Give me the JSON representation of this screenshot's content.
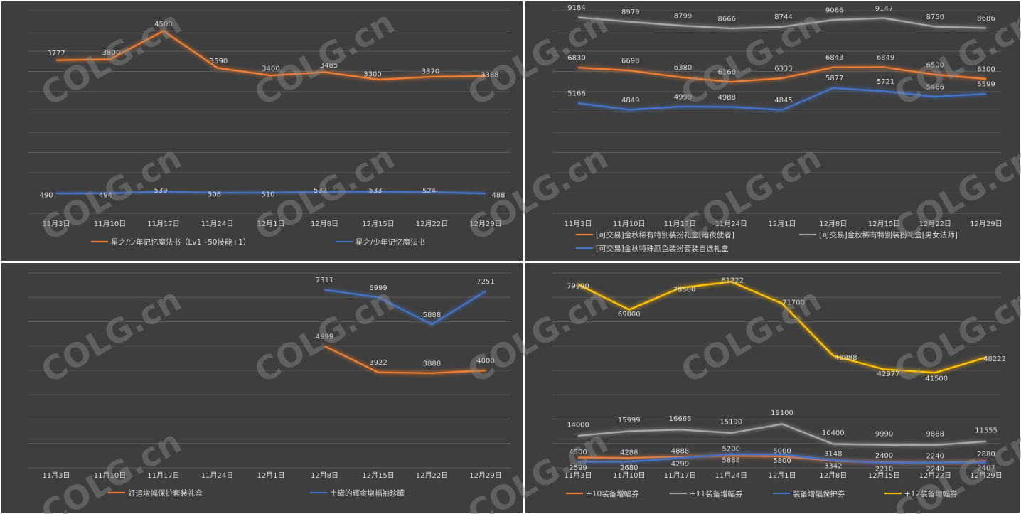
{
  "colors": {
    "orange": "#ed7d31",
    "gray": "#a5a5a5",
    "blue": "#4472c4",
    "yellow": "#ffc000"
  },
  "watermark": "COLG.cn",
  "chart_data": [
    {
      "type": "line",
      "categories": [
        "11月3日",
        "11月10日",
        "11月17日",
        "11月24日",
        "12月1日",
        "12月8日",
        "12月15日",
        "12月22日",
        "12月29日"
      ],
      "ylim": [
        0,
        5000
      ],
      "series": [
        {
          "name": "星之/少年记忆魔法书（Lv1~50技能+1）",
          "color": "#ed7d31",
          "values": [
            3777,
            3800,
            4500,
            3590,
            3400,
            3485,
            3300,
            3370,
            3388
          ]
        },
        {
          "name": "星之/少年记忆魔法书",
          "color": "#4472c4",
          "values": [
            490,
            494,
            539,
            506,
            510,
            532,
            533,
            524,
            488
          ]
        }
      ]
    },
    {
      "type": "line",
      "categories": [
        "11月3日",
        "11月10日",
        "11月17日",
        "11月24日",
        "12月1日",
        "12月8日",
        "12月15日",
        "12月22日",
        "12月29日"
      ],
      "ylim": [
        0,
        9500
      ],
      "series": [
        {
          "name": "[可交易]金秋稀有特别装扮礼盒[暗夜使者]",
          "color": "#ed7d31",
          "values": [
            6830,
            6698,
            6380,
            6160,
            6333,
            6843,
            6849,
            6500,
            6300
          ]
        },
        {
          "name": "[可交易]金秋稀有特别装扮礼盒[男女法师]",
          "color": "#a5a5a5",
          "values": [
            9184,
            8979,
            8799,
            8666,
            8744,
            9066,
            9147,
            8750,
            8686
          ]
        },
        {
          "name": "[可交易]金秋特殊颜色装扮套装自选礼盒",
          "color": "#4472c4",
          "values": [
            5166,
            4849,
            4999,
            4988,
            4845,
            5877,
            5721,
            5466,
            5599
          ]
        }
      ]
    },
    {
      "type": "line",
      "categories": [
        "11月3日",
        "11月10日",
        "11月17日",
        "11月24日",
        "12月1日",
        "12月8日",
        "12月15日",
        "12月22日",
        "12月29日"
      ],
      "ylim": [
        0,
        8000
      ],
      "series": [
        {
          "name": "好运增幅保护套装礼盒",
          "color": "#ed7d31",
          "values": [
            null,
            null,
            null,
            null,
            null,
            4999,
            3922,
            3888,
            4000
          ]
        },
        {
          "name": "土罐的辉金增幅袖珍罐",
          "color": "#4472c4",
          "values": [
            null,
            null,
            null,
            null,
            null,
            7311,
            6999,
            5888,
            7251
          ]
        }
      ]
    },
    {
      "type": "line",
      "categories": [
        "11月3日",
        "11月10日",
        "11月17日",
        "11月24日",
        "12月1日",
        "12月8日",
        "12月15日",
        "12月22日",
        "12月29日"
      ],
      "ylim": [
        0,
        85000
      ],
      "series": [
        {
          "name": "+10装备增幅券",
          "color": "#ed7d31",
          "values": [
            4500,
            4288,
            4888,
            5200,
            5000,
            3148,
            2400,
            2240,
            2880
          ]
        },
        {
          "name": "+11装备增幅券",
          "color": "#a5a5a5",
          "values": [
            14000,
            15999,
            16666,
            15190,
            19100,
            10400,
            9990,
            9888,
            11555
          ]
        },
        {
          "name": "装备增幅保护券",
          "color": "#4472c4",
          "values": [
            2599,
            2680,
            4299,
            5888,
            5800,
            3342,
            2210,
            2240,
            2407
          ]
        },
        {
          "name": "+12装备增幅券",
          "color": "#ffc000",
          "values": [
            79990,
            69000,
            78500,
            81222,
            71700,
            48888,
            42977,
            41500,
            48222
          ]
        }
      ]
    }
  ]
}
